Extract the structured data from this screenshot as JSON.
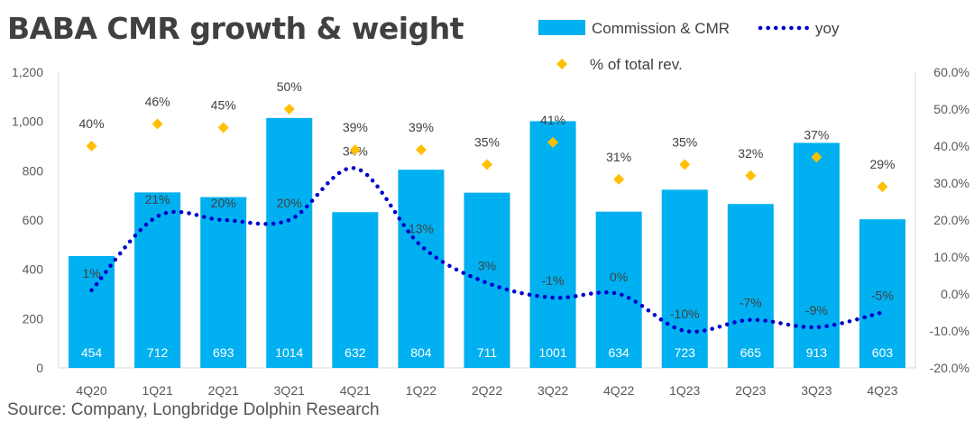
{
  "title": "BABA CMR growth & weight",
  "source": "Source: Company, Longbridge Dolphin Research",
  "colors": {
    "bar": "#00B0F0",
    "yoy": "#0000CC",
    "share": "#FFC000",
    "axis": "#D9D9D9"
  },
  "chart_data": {
    "type": "bar",
    "categories": [
      "4Q20",
      "1Q21",
      "2Q21",
      "3Q21",
      "4Q21",
      "1Q22",
      "2Q22",
      "3Q22",
      "4Q22",
      "1Q23",
      "2Q23",
      "3Q23",
      "4Q23"
    ],
    "series": [
      {
        "name": "Commission & CMR",
        "kind": "bar",
        "axis": "left",
        "values": [
          454,
          712,
          693,
          1014,
          632,
          804,
          711,
          1001,
          634,
          723,
          665,
          913,
          603
        ],
        "labels": [
          "454",
          "712",
          "693",
          "1014",
          "632",
          "804",
          "711",
          "1001",
          "634",
          "723",
          "665",
          "913",
          "603"
        ]
      },
      {
        "name": "yoy",
        "kind": "line-dotted",
        "axis": "right",
        "values": [
          1,
          21,
          20,
          20,
          34,
          13,
          3,
          -1,
          0,
          -10,
          -7,
          -9,
          -5
        ],
        "labels": [
          "1%",
          "21%",
          "20%",
          "20%",
          "34%",
          "13%",
          "3%",
          "-1%",
          "0%",
          "-10%",
          "-7%",
          "-9%",
          "-5%"
        ]
      },
      {
        "name": "% of total rev.",
        "kind": "marker",
        "axis": "right",
        "values": [
          40,
          46,
          45,
          50,
          39,
          39,
          35,
          41,
          31,
          35,
          32,
          37,
          29
        ],
        "labels": [
          "40%",
          "46%",
          "45%",
          "50%",
          "39%",
          "39%",
          "35%",
          "41%",
          "31%",
          "35%",
          "32%",
          "37%",
          "29%"
        ]
      }
    ],
    "y_left": {
      "min": 0,
      "max": 1200,
      "step": 200,
      "tick_labels": [
        "0",
        "200",
        "400",
        "600",
        "800",
        "1,000",
        "1,200"
      ]
    },
    "y_right": {
      "min": -20,
      "max": 60,
      "step": 10,
      "tick_labels": [
        "-20.0%",
        "-10.0%",
        "0.0%",
        "10.0%",
        "20.0%",
        "30.0%",
        "40.0%",
        "50.0%",
        "60.0%"
      ]
    },
    "grid": false,
    "legend_position": "top-right"
  }
}
